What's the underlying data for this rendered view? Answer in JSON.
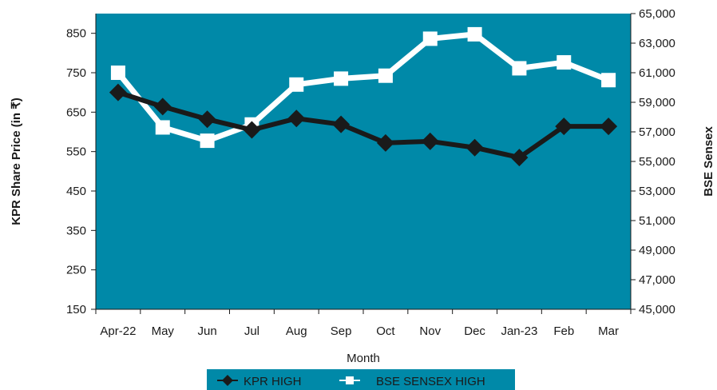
{
  "chart_data": {
    "type": "line",
    "xlabel": "Month",
    "ylabel_left": "KPR Share Price (in ₹)",
    "ylabel_right": "BSE Sensex",
    "categories": [
      "Apr-22",
      "May",
      "Jun",
      "Jul",
      "Aug",
      "Sep",
      "Oct",
      "Nov",
      "Dec",
      "Jan-23",
      "Feb",
      "Mar"
    ],
    "left_axis": {
      "min": 150,
      "max": 900,
      "ticks": [
        150,
        250,
        350,
        450,
        550,
        650,
        750,
        850
      ]
    },
    "right_axis": {
      "min": 45000,
      "max": 65000,
      "ticks": [
        "45,000",
        "47,000",
        "49,000",
        "51,000",
        "53,000",
        "55,000",
        "57,000",
        "59,000",
        "61,000",
        "63,000",
        "65,000"
      ],
      "tick_values": [
        45000,
        47000,
        49000,
        51000,
        53000,
        55000,
        57000,
        59000,
        61000,
        63000,
        65000
      ]
    },
    "series": [
      {
        "name": "KPR HIGH",
        "axis": "left",
        "color": "#1a1a1a",
        "marker": "diamond",
        "values": [
          700,
          664,
          632,
          605,
          634,
          619,
          572,
          576,
          560,
          535,
          614,
          614
        ]
      },
      {
        "name": "BSE SENSEX HIGH",
        "axis": "right",
        "color": "#ffffff",
        "marker": "square",
        "values": [
          61000,
          57300,
          56400,
          57500,
          60200,
          60600,
          60800,
          63300,
          63600,
          61300,
          61700,
          60500
        ]
      }
    ],
    "grid": false,
    "legend_position": "bottom",
    "plot_background": "#0089a8",
    "legend_background": "#0089a8"
  }
}
